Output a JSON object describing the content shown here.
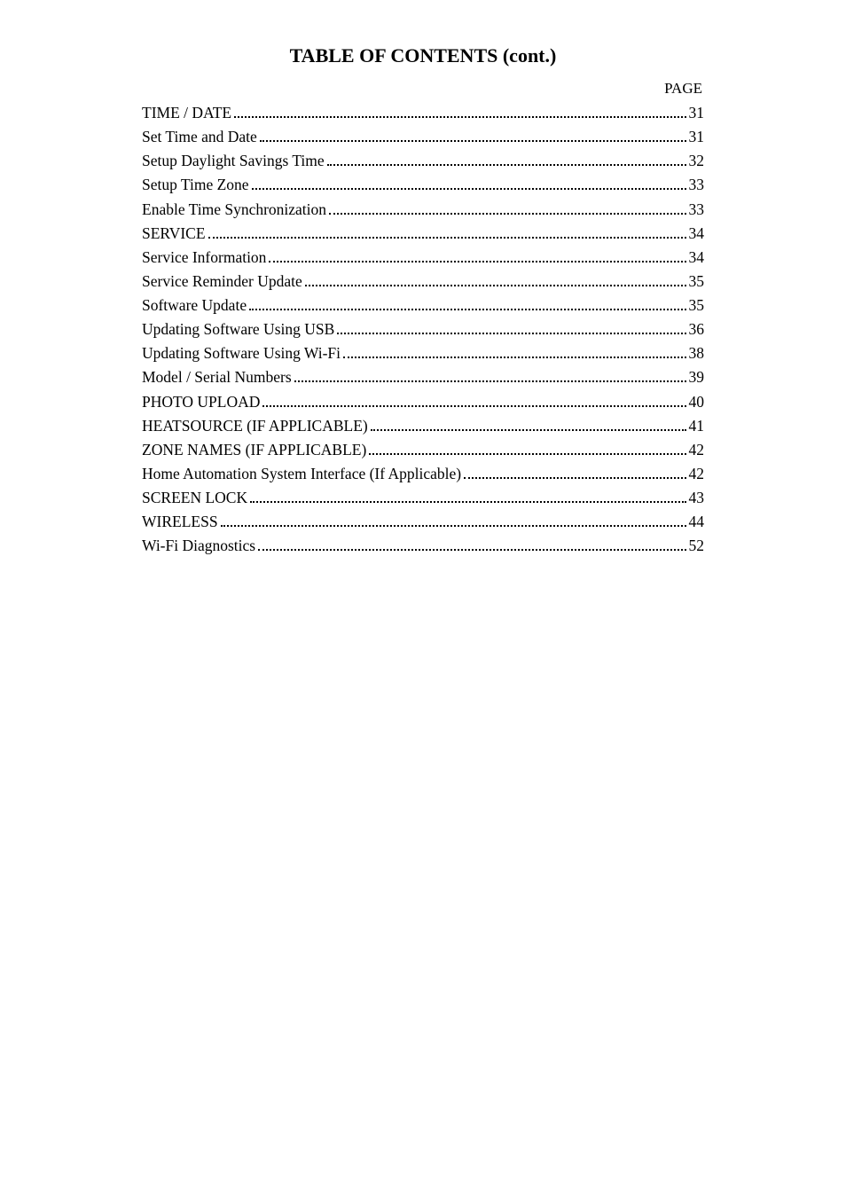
{
  "title": "TABLE OF CONTENTS (cont.)",
  "page_header": "PAGE",
  "typography": {
    "title_fontsize_pt": 17,
    "body_fontsize_pt": 13,
    "font_family": "Times New Roman",
    "text_color": "#000000",
    "background_color": "#ffffff",
    "dot_leader_color": "#000000"
  },
  "entries": [
    {
      "label": "TIME / DATE",
      "page": "31"
    },
    {
      "label": "Set Time and Date",
      "page": "31"
    },
    {
      "label": "Setup Daylight Savings Time",
      "page": "32"
    },
    {
      "label": "Setup Time Zone",
      "page": "33"
    },
    {
      "label": "Enable Time Synchronization",
      "page": "33"
    },
    {
      "label": "SERVICE",
      "page": "34"
    },
    {
      "label": "Service Information",
      "page": "34"
    },
    {
      "label": "Service Reminder Update",
      "page": "35"
    },
    {
      "label": "Software Update",
      "page": "35"
    },
    {
      "label": "Updating Software Using USB",
      "page": "36"
    },
    {
      "label": "Updating Software Using Wi-Fi",
      "page": "38"
    },
    {
      "label": "Model / Serial Numbers",
      "page": "39"
    },
    {
      "label": "PHOTO UPLOAD",
      "page": "40"
    },
    {
      "label": "HEATSOURCE (IF APPLICABLE)",
      "page": "41"
    },
    {
      "label": "ZONE NAMES (IF APPLICABLE)",
      "page": "42"
    },
    {
      "label": "Home Automation System Interface (If Applicable)",
      "page": "42"
    },
    {
      "label": "SCREEN LOCK",
      "page": "43"
    },
    {
      "label": "WIRELESS",
      "page": "44"
    },
    {
      "label": "Wi-Fi Diagnostics",
      "page": "52"
    }
  ]
}
